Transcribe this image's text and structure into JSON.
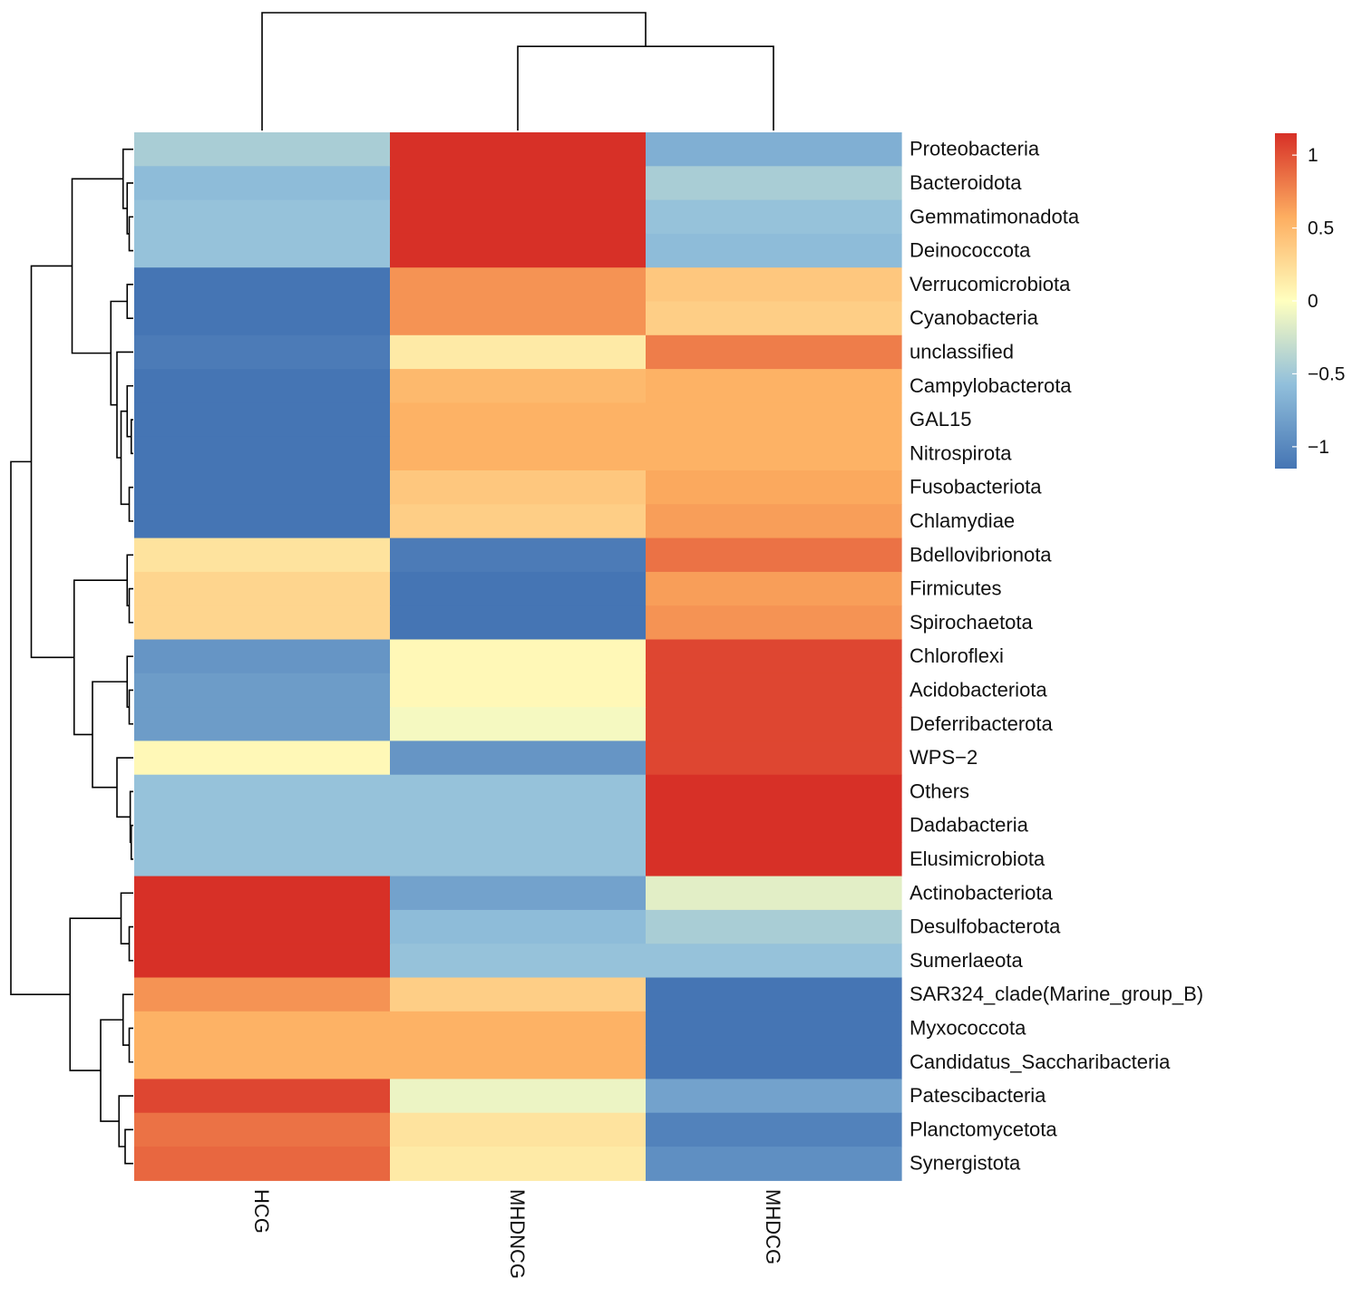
{
  "chart_data": {
    "type": "heatmap",
    "title": "",
    "xlabel": "",
    "ylabel": "",
    "columns": [
      "HCG",
      "MHDNCG",
      "MHDCG"
    ],
    "rows": [
      "Proteobacteria",
      "Bacteroidota",
      "Gemmatimonadota",
      "Deinococcota",
      "Verrucomicrobiota",
      "Cyanobacteria",
      "unclassified",
      "Campylobacterota",
      "GAL15",
      "Nitrospirota",
      "Fusobacteriota",
      "Chlamydiae",
      "Bdellovibrionota",
      "Firmicutes",
      "Spirochaetota",
      "Chloroflexi",
      "Acidobacteriota",
      "Deferribacterota",
      "WPS−2",
      "Others",
      "Dadabacteria",
      "Elusimicrobiota",
      "Actinobacteriota",
      "Desulfobacterota",
      "Sumerlaeota",
      "SAR324_clade(Marine_group_B)",
      "Myxococcota",
      "Candidatus_Saccharibacteria",
      "Patescibacteria",
      "Planctomycetota",
      "Synergistota"
    ],
    "values": [
      [
        -0.45,
        1.15,
        -0.7
      ],
      [
        -0.6,
        1.15,
        -0.45
      ],
      [
        -0.55,
        1.15,
        -0.55
      ],
      [
        -0.55,
        1.15,
        -0.6
      ],
      [
        -1.15,
        0.7,
        0.4
      ],
      [
        -1.15,
        0.7,
        0.35
      ],
      [
        -1.1,
        0.15,
        0.8
      ],
      [
        -1.15,
        0.5,
        0.55
      ],
      [
        -1.15,
        0.55,
        0.55
      ],
      [
        -1.15,
        0.55,
        0.55
      ],
      [
        -1.15,
        0.4,
        0.6
      ],
      [
        -1.15,
        0.35,
        0.65
      ],
      [
        0.2,
        -1.1,
        0.85
      ],
      [
        0.3,
        -1.15,
        0.65
      ],
      [
        0.3,
        -1.15,
        0.7
      ],
      [
        -0.9,
        0.05,
        1.05
      ],
      [
        -0.85,
        0.05,
        1.05
      ],
      [
        -0.85,
        -0.05,
        1.05
      ],
      [
        0.05,
        -0.9,
        1.05
      ],
      [
        -0.55,
        -0.55,
        1.15
      ],
      [
        -0.55,
        -0.55,
        1.15
      ],
      [
        -0.55,
        -0.55,
        1.15
      ],
      [
        1.15,
        -0.8,
        -0.15
      ],
      [
        1.15,
        -0.6,
        -0.45
      ],
      [
        1.15,
        -0.55,
        -0.55
      ],
      [
        0.7,
        0.35,
        -1.15
      ],
      [
        0.55,
        0.55,
        -1.15
      ],
      [
        0.55,
        0.55,
        -1.15
      ],
      [
        1.05,
        -0.1,
        -0.8
      ],
      [
        0.85,
        0.2,
        -1.05
      ],
      [
        0.9,
        0.15,
        -0.95
      ]
    ],
    "color_scale": {
      "min": -1.15,
      "max": 1.15,
      "stops": [
        {
          "value": -1.15,
          "color": "#4575b4"
        },
        {
          "value": -0.575,
          "color": "#91bfdb"
        },
        {
          "value": 0,
          "color": "#ffffbf"
        },
        {
          "value": 0.575,
          "color": "#fdae61"
        },
        {
          "value": 1.15,
          "color": "#d73027"
        }
      ]
    },
    "legend": {
      "ticks": [
        {
          "value": 1,
          "label": "1"
        },
        {
          "value": 0.5,
          "label": "0.5"
        },
        {
          "value": 0,
          "label": "0"
        },
        {
          "value": -0.5,
          "label": "−0.5"
        },
        {
          "value": -1,
          "label": "−1"
        }
      ],
      "placement": "top-right"
    },
    "col_dendrogram": {
      "leaves": [
        0,
        1,
        2
      ],
      "merges": [
        [
          1,
          2,
          1.0
        ],
        [
          0,
          3,
          1.4
        ]
      ]
    },
    "row_dendrogram": {
      "leaves": [
        0,
        1,
        2,
        3,
        4,
        5,
        6,
        7,
        8,
        9,
        10,
        11,
        12,
        13,
        14,
        15,
        16,
        17,
        18,
        19,
        20,
        21,
        22,
        23,
        24,
        25,
        26,
        27,
        28,
        29,
        30
      ],
      "merges": [
        [
          2,
          3,
          0.04
        ],
        [
          1,
          31,
          0.06
        ],
        [
          0,
          32,
          0.1
        ],
        [
          4,
          5,
          0.06
        ],
        [
          8,
          9,
          0.02
        ],
        [
          7,
          35,
          0.06
        ],
        [
          10,
          11,
          0.04
        ],
        [
          36,
          37,
          0.12
        ],
        [
          6,
          38,
          0.16
        ],
        [
          34,
          39,
          0.22
        ],
        [
          33,
          40,
          0.6
        ],
        [
          13,
          14,
          0.04
        ],
        [
          12,
          42,
          0.06
        ],
        [
          16,
          17,
          0.04
        ],
        [
          15,
          44,
          0.06
        ],
        [
          20,
          21,
          0.02
        ],
        [
          19,
          46,
          0.03
        ],
        [
          18,
          47,
          0.16
        ],
        [
          45,
          48,
          0.4
        ],
        [
          43,
          49,
          0.58
        ],
        [
          41,
          50,
          1.0
        ],
        [
          23,
          24,
          0.04
        ],
        [
          22,
          52,
          0.12
        ],
        [
          26,
          27,
          0.04
        ],
        [
          25,
          54,
          0.1
        ],
        [
          29,
          30,
          0.08
        ],
        [
          28,
          56,
          0.14
        ],
        [
          55,
          57,
          0.32
        ],
        [
          53,
          58,
          0.62
        ],
        [
          51,
          59,
          1.2
        ]
      ]
    }
  }
}
